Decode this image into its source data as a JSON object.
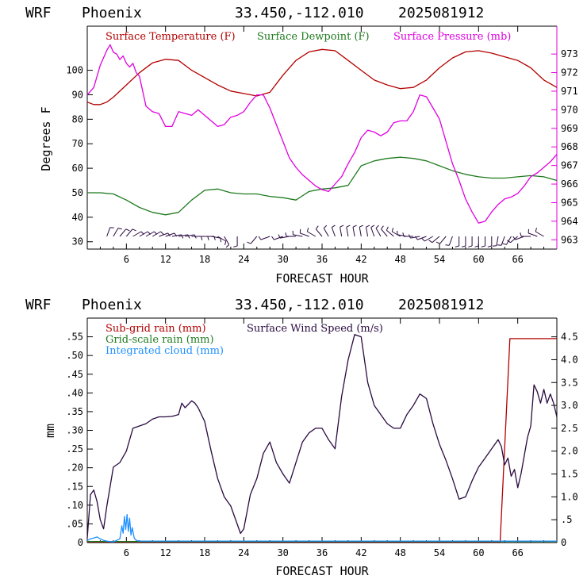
{
  "colors": {
    "temperature": "#b30000",
    "dewpoint": "#1f7a1f",
    "pressure": "#e000e0",
    "subgrid_rain": "#b30000",
    "gridscale_rain": "#1f7a1f",
    "cloud": "#1e90ff",
    "wind": "#2a0a40",
    "axis": "#000000"
  },
  "chart_data": [
    {
      "type": "line",
      "header": {
        "model": "WRF",
        "location": "Phoenix",
        "coords": "33.450,-112.010",
        "init": "2025081912"
      },
      "xlabel": "FORECAST HOUR",
      "ylabel": "Degrees F",
      "xlim": [
        0,
        72
      ],
      "xticks": [
        6,
        12,
        18,
        24,
        30,
        36,
        42,
        48,
        54,
        60,
        66
      ],
      "ylim": [
        27,
        118
      ],
      "yticks": [
        30,
        40,
        50,
        60,
        70,
        80,
        90,
        100
      ],
      "y2lim": [
        962.5,
        974.5
      ],
      "y2ticks": [
        963,
        964,
        965,
        966,
        967,
        968,
        969,
        970,
        971,
        972,
        973
      ],
      "legend": [
        "Surface Temperature (F)",
        "Surface Dewpoint (F)",
        "Surface Pressure (mb)"
      ],
      "series": [
        {
          "name": "Surface Temperature (F)",
          "axis": "left",
          "x": [
            0,
            1,
            2,
            3,
            4,
            6,
            8,
            10,
            12,
            14,
            16,
            18,
            20,
            22,
            24,
            26,
            28,
            30,
            32,
            34,
            36,
            38,
            40,
            42,
            44,
            46,
            48,
            50,
            52,
            54,
            56,
            58,
            60,
            62,
            64,
            66,
            68,
            70,
            72
          ],
          "y": [
            87,
            86,
            86,
            87,
            89,
            94,
            99,
            103,
            104.5,
            104,
            100,
            97,
            94,
            91.5,
            90.5,
            89.5,
            91,
            98,
            104,
            107.5,
            108.5,
            108,
            104,
            100,
            96,
            94,
            92.5,
            93,
            96,
            101,
            105,
            107.5,
            108,
            107,
            105.5,
            104,
            101,
            96,
            93
          ]
        },
        {
          "name": "Surface Dewpoint (F)",
          "axis": "left",
          "x": [
            0,
            2,
            4,
            6,
            8,
            10,
            12,
            14,
            16,
            18,
            20,
            22,
            24,
            26,
            28,
            30,
            32,
            34,
            36,
            38,
            40,
            42,
            44,
            46,
            48,
            50,
            52,
            54,
            56,
            58,
            60,
            62,
            64,
            66,
            68,
            70,
            72
          ],
          "y": [
            50,
            50,
            49.5,
            47,
            44,
            42,
            41,
            42,
            47,
            51,
            51.5,
            50,
            49.5,
            49.5,
            48.5,
            48,
            47,
            50.5,
            51.5,
            52,
            53,
            61,
            63,
            64,
            64.5,
            64,
            63,
            61,
            59,
            57.5,
            56.5,
            56,
            56,
            56.5,
            57,
            56.5,
            55
          ]
        },
        {
          "name": "Surface Pressure (mb)",
          "axis": "right",
          "x": [
            0,
            1,
            2,
            3,
            3.5,
            4,
            4.5,
            5,
            5.5,
            6,
            6.5,
            7,
            7.5,
            8,
            9,
            10,
            11,
            12,
            13,
            14,
            15,
            16,
            17,
            18,
            19,
            20,
            21,
            22,
            23,
            24,
            25,
            26,
            27,
            28,
            29,
            30,
            31,
            32,
            33,
            34,
            35,
            36,
            37,
            38,
            39,
            40,
            41,
            42,
            43,
            44,
            45,
            46,
            47,
            48,
            49,
            50,
            51,
            52,
            53,
            54,
            55,
            56,
            57,
            58,
            59,
            60,
            61,
            62,
            63,
            64,
            65,
            66,
            67,
            68,
            69,
            70,
            71,
            72
          ],
          "y": [
            970.8,
            971.2,
            972.4,
            973.2,
            973.5,
            973.1,
            973.0,
            972.7,
            972.9,
            972.5,
            972.3,
            972.5,
            972.0,
            971.8,
            970.2,
            969.9,
            969.8,
            969.1,
            969.1,
            969.9,
            969.8,
            969.7,
            970.0,
            969.7,
            969.4,
            969.1,
            969.2,
            969.6,
            969.7,
            969.9,
            970.4,
            970.8,
            970.8,
            970.1,
            969.2,
            968.3,
            967.4,
            966.9,
            966.5,
            966.2,
            965.9,
            965.7,
            965.6,
            966.0,
            966.4,
            967.1,
            967.7,
            968.5,
            968.9,
            968.8,
            968.6,
            968.8,
            969.3,
            969.4,
            969.4,
            969.9,
            970.8,
            970.7,
            970.1,
            969.5,
            968.3,
            967.1,
            966.2,
            965.2,
            964.5,
            963.9,
            964.0,
            964.5,
            964.9,
            965.2,
            965.3,
            965.5,
            965.9,
            966.4,
            966.6,
            966.9,
            967.2,
            967.6
          ]
        }
      ],
      "wind_barbs": {
        "x": [
          3,
          4,
          5,
          6,
          7,
          8,
          9,
          10,
          11,
          12,
          13,
          14,
          15,
          16,
          17,
          18,
          19,
          20,
          21,
          23,
          26,
          28,
          30,
          31,
          32,
          33,
          34,
          35,
          36,
          37,
          38,
          39,
          40,
          41,
          42,
          43,
          44,
          45,
          46,
          47,
          48,
          49,
          50,
          51,
          52,
          53,
          54,
          55,
          56,
          57,
          58,
          59,
          60,
          61,
          62,
          63,
          64,
          65,
          66,
          67,
          68,
          69,
          70
        ],
        "dir_deg": [
          20,
          30,
          40,
          40,
          60,
          60,
          60,
          60,
          70,
          70,
          80,
          80,
          80,
          90,
          90,
          90,
          100,
          120,
          150,
          180,
          220,
          250,
          250,
          260,
          270,
          280,
          290,
          300,
          320,
          330,
          340,
          350,
          350,
          350,
          350,
          350,
          340,
          330,
          320,
          310,
          300,
          280,
          270,
          260,
          250,
          240,
          230,
          220,
          200,
          180,
          180,
          180,
          180,
          180,
          180,
          190,
          200,
          210,
          230,
          250,
          270,
          290,
          300
        ]
      }
    },
    {
      "type": "line",
      "header": {
        "model": "WRF",
        "location": "Phoenix",
        "coords": "33.450,-112.010",
        "init": "2025081912"
      },
      "xlabel": "FORECAST HOUR",
      "ylabel": "mm",
      "xlim": [
        0,
        72
      ],
      "xticks": [
        6,
        12,
        18,
        24,
        30,
        36,
        42,
        48,
        54,
        60,
        66
      ],
      "ylim": [
        0,
        0.6
      ],
      "yticks": [
        {
          "v": 0,
          "label": "0"
        },
        {
          "v": 0.05,
          "label": ".05"
        },
        {
          "v": 0.1,
          "label": ".10"
        },
        {
          "v": 0.15,
          "label": ".15"
        },
        {
          "v": 0.2,
          "label": ".20"
        },
        {
          "v": 0.25,
          "label": ".25"
        },
        {
          "v": 0.3,
          "label": ".30"
        },
        {
          "v": 0.35,
          "label": ".35"
        },
        {
          "v": 0.4,
          "label": ".40"
        },
        {
          "v": 0.45,
          "label": ".45"
        },
        {
          "v": 0.5,
          "label": ".50"
        },
        {
          "v": 0.55,
          "label": ".55"
        }
      ],
      "y2lim": [
        0,
        4.91
      ],
      "y2ticks": [
        {
          "v": 0,
          "label": "0"
        },
        {
          "v": 0.5,
          "label": ".5"
        },
        {
          "v": 1.0,
          "label": "1.0"
        },
        {
          "v": 1.5,
          "label": "1.5"
        },
        {
          "v": 2.0,
          "label": "2.0"
        },
        {
          "v": 2.5,
          "label": "2.5"
        },
        {
          "v": 3.0,
          "label": "3.0"
        },
        {
          "v": 3.5,
          "label": "3.5"
        },
        {
          "v": 4.0,
          "label": "4.0"
        },
        {
          "v": 4.5,
          "label": "4.5"
        }
      ],
      "legend": [
        "Sub-grid rain (mm)",
        "Grid-scale rain (mm)",
        "Integrated cloud (mm)",
        "Surface Wind Speed (m/s)"
      ],
      "series": [
        {
          "name": "Sub-grid rain (mm)",
          "axis": "left",
          "x": [
            0,
            63.3,
            64.8,
            72
          ],
          "y": [
            0.002,
            0.002,
            0.545,
            0.545
          ]
        },
        {
          "name": "Grid-scale rain (mm)",
          "axis": "left",
          "x": [
            0,
            72
          ],
          "y": [
            0.003,
            0.003
          ]
        },
        {
          "name": "Integrated cloud (mm)",
          "axis": "left",
          "x": [
            0,
            0.5,
            1,
            1.5,
            2,
            2.5,
            3,
            4,
            5,
            5.3,
            5.5,
            5.7,
            5.9,
            6.1,
            6.3,
            6.5,
            6.7,
            6.9,
            7.2,
            7.5,
            8,
            72
          ],
          "y": [
            0.005,
            0.01,
            0.012,
            0.015,
            0.01,
            0.006,
            0.004,
            0.002,
            0.01,
            0.045,
            0.025,
            0.07,
            0.035,
            0.075,
            0.03,
            0.065,
            0.02,
            0.04,
            0.012,
            0.006,
            0.004,
            0.004
          ]
        },
        {
          "name": "Surface Wind Speed (m/s)",
          "axis": "right",
          "x": [
            0,
            0.5,
            1,
            1.5,
            2,
            2.5,
            3,
            4,
            5,
            6,
            7,
            8,
            9,
            10,
            11,
            12,
            13,
            14,
            14.5,
            15,
            16,
            16.5,
            17,
            18,
            19,
            20,
            21,
            22,
            23,
            23.5,
            24,
            25,
            26,
            27,
            28,
            29,
            30,
            31,
            32,
            33,
            34,
            35,
            36,
            37,
            38,
            39,
            40,
            41,
            42,
            43,
            44,
            45,
            46,
            47,
            48,
            49,
            50,
            51,
            52,
            53,
            54,
            55,
            56,
            57,
            58,
            59,
            60,
            61,
            62,
            63,
            63.5,
            64,
            64.5,
            65,
            65.5,
            66,
            66.5,
            67,
            67.5,
            68,
            68.5,
            69,
            69.5,
            70,
            70.5,
            71,
            71.5,
            72
          ],
          "y": [
            0.1,
            1.05,
            1.15,
            0.9,
            0.5,
            0.3,
            0.8,
            1.65,
            1.75,
            2.0,
            2.5,
            2.55,
            2.6,
            2.7,
            2.75,
            2.75,
            2.76,
            2.8,
            3.05,
            2.95,
            3.1,
            3.05,
            2.95,
            2.65,
            2.0,
            1.4,
            1.0,
            0.8,
            0.4,
            0.2,
            0.3,
            1.05,
            1.4,
            1.95,
            2.2,
            1.75,
            1.5,
            1.3,
            1.75,
            2.2,
            2.4,
            2.5,
            2.5,
            2.25,
            2.05,
            3.2,
            4.0,
            4.55,
            4.5,
            3.5,
            3.0,
            2.8,
            2.6,
            2.5,
            2.5,
            2.8,
            3.0,
            3.25,
            3.15,
            2.6,
            2.15,
            1.8,
            1.4,
            0.95,
            1.0,
            1.35,
            1.65,
            1.85,
            2.05,
            2.25,
            2.1,
            1.7,
            1.85,
            1.45,
            1.6,
            1.2,
            1.5,
            1.9,
            2.3,
            2.55,
            3.45,
            3.3,
            3.05,
            3.35,
            3.05,
            3.25,
            3.05,
            2.75
          ]
        }
      ]
    }
  ]
}
